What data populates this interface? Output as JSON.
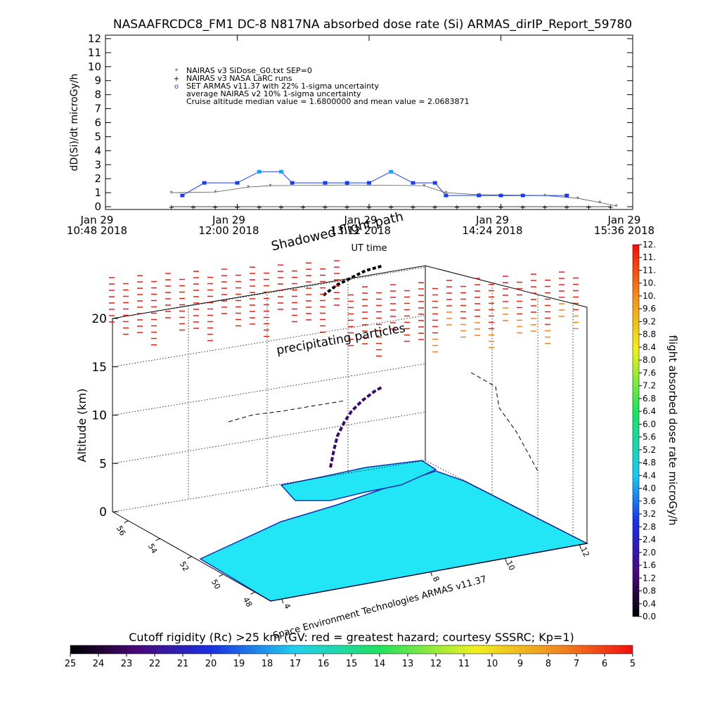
{
  "chart_data": [
    {
      "type": "line",
      "title": "NASAAFRCDC8_FM1 DC-8   N817NA absorbed dose rate (Si) ARMAS_dirIP_Report_59780",
      "x_label": "UT time",
      "y_label": "dD(Si)/dt microGy/h",
      "xlim": [
        10.8,
        15.6
      ],
      "xticks": [
        {
          "value": 10.8,
          "label": "Jan 29\n10:48 2018"
        },
        {
          "value": 12,
          "label": "Jan 29\n12:00 2018"
        },
        {
          "value": 13.2,
          "label": "Jan 29\n13:12 2018"
        },
        {
          "value": 14.4,
          "label": "Jan 29\n14:24 2018"
        },
        {
          "value": 15.6,
          "label": "Jan 29\n15:36 2018"
        }
      ],
      "ylim": [
        -0.2,
        12.25
      ],
      "yticks": [
        0,
        1,
        2,
        3,
        4,
        5,
        6,
        7,
        8,
        9,
        10,
        11,
        12
      ],
      "series": [
        {
          "name": "NAIRAS v3 SiDose_G0.txt SEP=0",
          "color": "#555555",
          "x": [
            11.4,
            11.8,
            12.1,
            12.3,
            13.0,
            13.7,
            13.9,
            14.2,
            14.8,
            15.1,
            15.3,
            15.45
          ],
          "values": [
            1.0,
            1.05,
            1.4,
            1.5,
            1.55,
            1.5,
            1.0,
            0.85,
            0.8,
            0.6,
            0.3,
            0.05
          ]
        },
        {
          "name": "NAIRAS v3 NASA LaRC runs",
          "color": "#000000",
          "x": [
            11.4,
            11.6,
            11.8,
            12.0,
            12.2,
            12.4,
            12.6,
            12.8,
            13.0,
            13.2,
            13.4,
            13.6,
            13.8,
            14.0,
            14.2,
            14.4,
            14.6,
            14.8,
            15.0,
            15.2,
            15.4
          ],
          "values": [
            0,
            0,
            0,
            0,
            0,
            0,
            0,
            0,
            0,
            0,
            0,
            0,
            0,
            0,
            0,
            0,
            0,
            0,
            0,
            0,
            0
          ]
        },
        {
          "name": "SET ARMAS v11.37 with 22% 1-sigma uncertainty",
          "color": "#1a3ee0",
          "x": [
            11.5,
            11.7,
            12.0,
            12.2,
            12.4,
            12.5,
            12.8,
            13.0,
            13.2,
            13.4,
            13.6,
            13.8,
            13.9,
            14.2,
            14.4,
            14.6,
            15.0
          ],
          "values": [
            0.8,
            1.7,
            1.7,
            2.5,
            2.5,
            1.7,
            1.7,
            1.7,
            1.7,
            2.5,
            1.7,
            1.7,
            0.8,
            0.8,
            0.8,
            0.8,
            0.8
          ]
        }
      ],
      "annotations": [
        "average NAIRAS v2 10% 1-sigma uncertainty",
        "Cruise altitude median value = 1.6800000 and mean value = 2.0683871"
      ]
    },
    {
      "type": "surface3d",
      "title": "Shadowed flight path",
      "annotations": [
        "precipitating particles",
        "Space Environment Technologies ARMAS v11.37"
      ],
      "z_label": "Altitude (km)",
      "zlim": [
        0,
        20
      ],
      "zticks": [
        0,
        5,
        10,
        15,
        20
      ],
      "lat_ticks": [
        48,
        50,
        52,
        54,
        56
      ],
      "lon_ticks": [
        4,
        8,
        10,
        12
      ],
      "colorbar": {
        "label": "flight absorbed dose rate microGy/h",
        "lim": [
          0,
          11.6
        ],
        "ticks": [
          {
            "value": 0,
            "label": "0.0"
          },
          0.4,
          0.8,
          1.2,
          1.6,
          {
            "value": 2,
            "label": "2.0"
          },
          2.4,
          2.8,
          3.2,
          3.6,
          {
            "value": 4,
            "label": "4.0"
          },
          4.4,
          4.8,
          5.2,
          5.6,
          {
            "value": 6,
            "label": "6.0"
          },
          6.4,
          6.8,
          7.2,
          7.6,
          {
            "value": 8,
            "label": "8.0"
          },
          8.4,
          8.8,
          9.2,
          9.6,
          {
            "value": 10,
            "label": "10."
          },
          {
            "value": 10.4,
            "label": "10."
          },
          {
            "value": 10.8,
            "label": "11."
          },
          {
            "value": 11.2,
            "label": "11."
          },
          {
            "value": 11.6,
            "label": "12."
          }
        ]
      },
      "rigidity_colorbar": {
        "label": "Cutoff rigidity (Rc) >25 km (GV: red = greatest hazard; courtesy SSSRC; Kp=1)",
        "lim": [
          25,
          5
        ],
        "ticks": [
          25,
          24,
          23,
          22,
          21,
          20,
          19,
          18,
          17,
          16,
          15,
          14,
          13,
          12,
          11,
          10,
          9,
          8,
          7,
          6,
          5
        ]
      }
    }
  ]
}
